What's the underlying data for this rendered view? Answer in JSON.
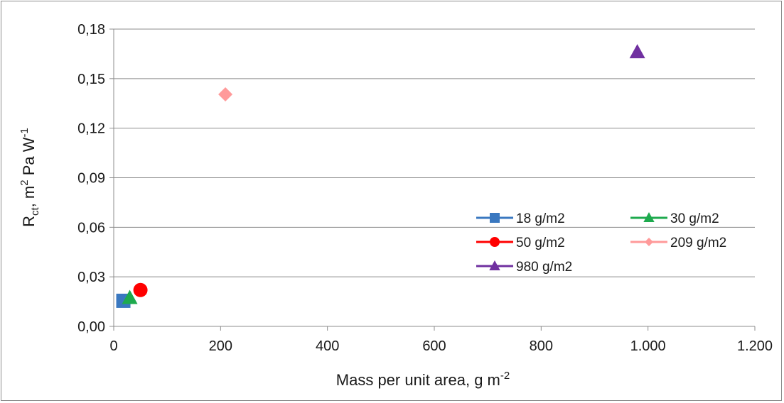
{
  "chart_data": {
    "type": "scatter",
    "title": "",
    "xlabel": {
      "base": "Mass per unit area, g m",
      "sup": "-2"
    },
    "ylabel": {
      "R": "R",
      "sub": "ct",
      "mid": ", m",
      "sup1": "2",
      "mid2": " Pa W",
      "sup2": "-1"
    },
    "xlim": [
      0,
      1200
    ],
    "ylim": [
      0,
      0.18
    ],
    "x_ticks": [
      0,
      200,
      400,
      600,
      800,
      1000,
      1200
    ],
    "x_tick_labels": [
      "0",
      "200",
      "400",
      "600",
      "800",
      "1.000",
      "1.200"
    ],
    "y_ticks": [
      0,
      0.03,
      0.06,
      0.09,
      0.12,
      0.15,
      0.18
    ],
    "y_tick_labels": [
      "0,00",
      "0,03",
      "0,06",
      "0,09",
      "0,12",
      "0,15",
      "0,18"
    ],
    "grid": "horizontal",
    "legend_position": "right",
    "series": [
      {
        "name": "18 g/m2",
        "color": "#3a78c0",
        "marker": "square",
        "x": [
          18
        ],
        "y": [
          0.0155
        ]
      },
      {
        "name": "30 g/m2",
        "color": "#1eaa4e",
        "marker": "triangle",
        "x": [
          30
        ],
        "y": [
          0.0172
        ]
      },
      {
        "name": "50 g/m2",
        "color": "#ff0000",
        "marker": "circle",
        "x": [
          50
        ],
        "y": [
          0.022
        ]
      },
      {
        "name": "209 g/m2",
        "color": "#ff9a9a",
        "marker": "diamond",
        "x": [
          209
        ],
        "y": [
          0.1405
        ]
      },
      {
        "name": "980 g/m2",
        "color": "#7030a0",
        "marker": "triangle",
        "x": [
          980
        ],
        "y": [
          0.166
        ]
      }
    ]
  }
}
